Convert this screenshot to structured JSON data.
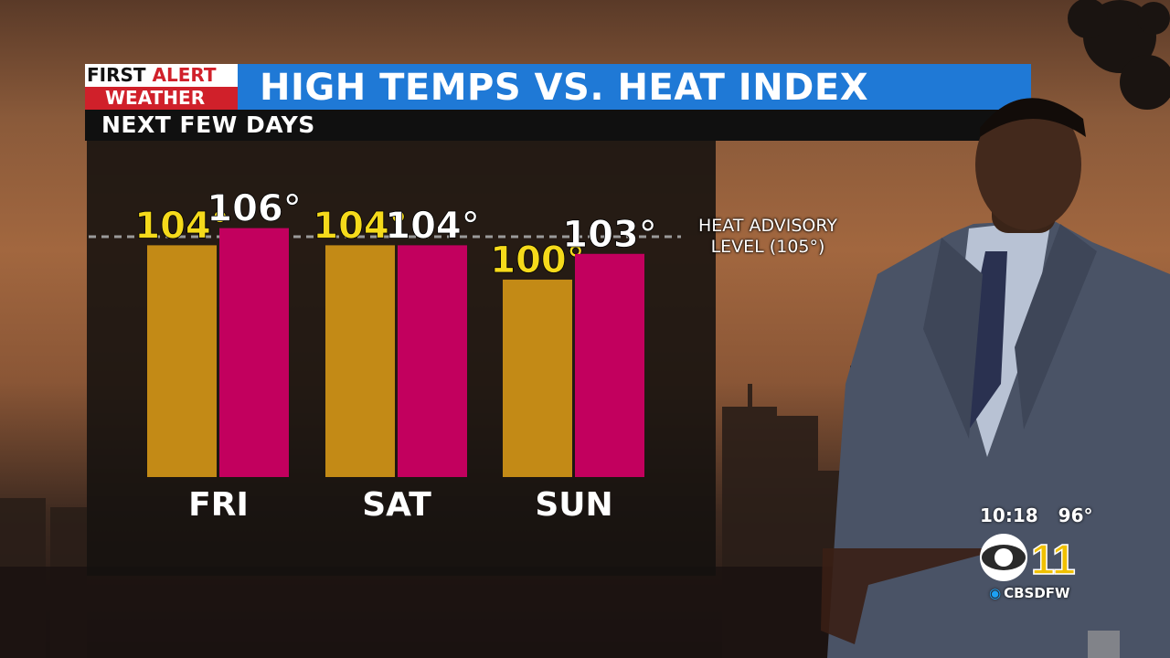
{
  "brand": {
    "line1_a": "FIRST",
    "line1_b": "ALERT",
    "line2": "WEATHER"
  },
  "title": "HIGH TEMPS VS. HEAT INDEX",
  "subtitle": "NEXT FEW DAYS",
  "advisory": {
    "line1": "HEAT ADVISORY",
    "line2": "LEVEL (105°)"
  },
  "bug": {
    "time": "10:18",
    "temp": "96°",
    "channel": "11",
    "handle": "CBSDFW"
  },
  "colors": {
    "high": "#c38a16",
    "heat_index": "#c2005e",
    "high_label": "#f5da1b",
    "title_bar": "#1f79d6",
    "alert_red": "#d0202a"
  },
  "chart_data": {
    "type": "bar",
    "categories": [
      "FRI",
      "SAT",
      "SUN"
    ],
    "series": [
      {
        "values": [
          104,
          104,
          100
        ],
        "labels": [
          "104°",
          "104°",
          "100°"
        ]
      },
      {
        "values": [
          106,
          104,
          103
        ],
        "labels": [
          "106°",
          "104°",
          "103°"
        ]
      }
    ],
    "reference_line": {
      "value": 105,
      "style": "dashed"
    },
    "title": "HIGH TEMPS VS. HEAT INDEX",
    "subtitle": "NEXT FEW DAYS",
    "ylim": [
      77,
      107
    ]
  }
}
